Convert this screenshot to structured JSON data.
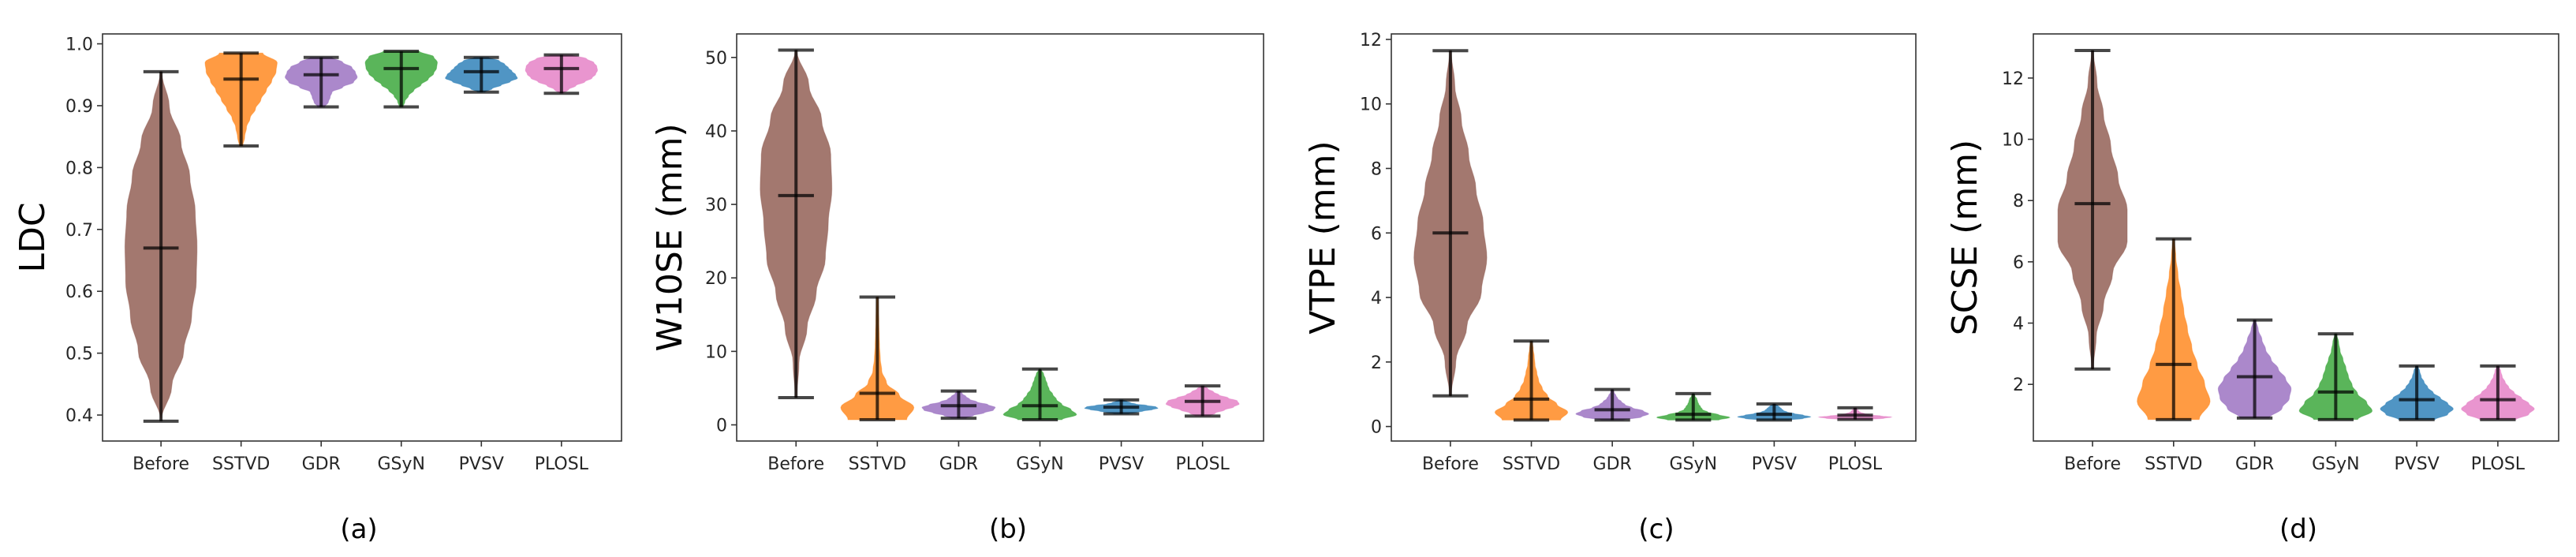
{
  "chart_data": [
    {
      "type": "violin",
      "caption": "(a)",
      "ylabel": "LDC",
      "categories": [
        "Before",
        "SSTVD",
        "GDR",
        "GSyN",
        "PVSV",
        "PLOSL"
      ],
      "ylim": [
        0.358,
        1.016
      ],
      "yticks": [
        0.4,
        0.5,
        0.6,
        0.7,
        0.8,
        0.9,
        1.0
      ],
      "ytick_labels": [
        "0.4",
        "0.5",
        "0.6",
        "0.7",
        "0.8",
        "0.9",
        "1.0"
      ],
      "grid": false,
      "series": [
        {
          "name": "Before",
          "min": 0.39,
          "max": 0.955,
          "median": 0.67,
          "density": [
            0,
            0.3,
            0.63,
            0.85,
            0.98,
            1.0,
            0.95,
            0.8,
            0.55,
            0.23,
            0.02
          ]
        },
        {
          "name": "SSTVD",
          "min": 0.835,
          "max": 0.985,
          "median": 0.943,
          "density": [
            0.05,
            0.1,
            0.15,
            0.25,
            0.4,
            0.55,
            0.7,
            0.85,
            0.97,
            1.0,
            0.6
          ]
        },
        {
          "name": "GDR",
          "min": 0.898,
          "max": 0.978,
          "median": 0.95,
          "density": [
            0.1,
            0.2,
            0.25,
            0.3,
            0.6,
            0.9,
            1.0,
            0.95,
            0.85,
            0.6,
            0.3
          ]
        },
        {
          "name": "GSyN",
          "min": 0.898,
          "max": 0.988,
          "median": 0.96,
          "density": [
            0.05,
            0.1,
            0.2,
            0.35,
            0.55,
            0.75,
            0.9,
            0.98,
            1.0,
            0.9,
            0.5
          ]
        },
        {
          "name": "PVSV",
          "min": 0.922,
          "max": 0.978,
          "median": 0.955,
          "density": [
            0.1,
            0.3,
            0.55,
            0.8,
            1.0,
            0.95,
            0.85,
            0.75,
            0.65,
            0.5,
            0.2
          ]
        },
        {
          "name": "PLOSL",
          "min": 0.92,
          "max": 0.982,
          "median": 0.96,
          "density": [
            0.05,
            0.2,
            0.4,
            0.65,
            0.85,
            0.95,
            1.0,
            0.98,
            0.9,
            0.7,
            0.3
          ]
        }
      ]
    },
    {
      "type": "violin",
      "caption": "(b)",
      "ylabel": "W10SE (mm)",
      "categories": [
        "Before",
        "SSTVD",
        "GDR",
        "GSyN",
        "PVSV",
        "PLOSL"
      ],
      "ylim": [
        -2.2,
        53.2
      ],
      "yticks": [
        0,
        10,
        20,
        30,
        40,
        50
      ],
      "ytick_labels": [
        "0",
        "10",
        "20",
        "30",
        "40",
        "50"
      ],
      "grid": false,
      "series": [
        {
          "name": "Before",
          "min": 3.7,
          "max": 51,
          "median": 31.2,
          "density": [
            0.02,
            0.08,
            0.3,
            0.55,
            0.8,
            0.88,
            0.98,
            0.95,
            0.7,
            0.35,
            0.02
          ]
        },
        {
          "name": "SSTVD",
          "min": 0.7,
          "max": 17.4,
          "median": 4.3,
          "density": [
            0.8,
            1.0,
            0.6,
            0.25,
            0.12,
            0.08,
            0.06,
            0.05,
            0.04,
            0.03,
            0.02
          ]
        },
        {
          "name": "GDR",
          "min": 0.9,
          "max": 4.6,
          "median": 2.6,
          "density": [
            0.2,
            0.4,
            0.7,
            0.95,
            1.0,
            0.8,
            0.5,
            0.3,
            0.2,
            0.1,
            0.05
          ]
        },
        {
          "name": "GSyN",
          "min": 0.7,
          "max": 7.6,
          "median": 2.6,
          "density": [
            0.6,
            1.0,
            0.85,
            0.6,
            0.45,
            0.35,
            0.25,
            0.2,
            0.15,
            0.1,
            0.02
          ]
        },
        {
          "name": "PVSV",
          "min": 1.5,
          "max": 3.4,
          "median": 2.4,
          "density": [
            0.2,
            0.4,
            0.6,
            0.85,
            1.0,
            0.95,
            0.7,
            0.4,
            0.25,
            0.15,
            0.05
          ]
        },
        {
          "name": "PLOSL",
          "min": 1.2,
          "max": 5.3,
          "median": 3.2,
          "density": [
            0.2,
            0.35,
            0.6,
            0.85,
            1.0,
            0.95,
            0.7,
            0.45,
            0.3,
            0.15,
            0.05
          ]
        }
      ]
    },
    {
      "type": "violin",
      "caption": "(c)",
      "ylabel": "VTPE (mm)",
      "categories": [
        "Before",
        "SSTVD",
        "GDR",
        "GSyN",
        "PVSV",
        "PLOSL"
      ],
      "ylim": [
        -0.45,
        12.17
      ],
      "yticks": [
        0,
        2,
        4,
        6,
        8,
        10,
        12
      ],
      "ytick_labels": [
        "0",
        "2",
        "4",
        "6",
        "8",
        "10",
        "12"
      ],
      "grid": false,
      "series": [
        {
          "name": "Before",
          "min": 0.95,
          "max": 11.65,
          "median": 6.0,
          "density": [
            0.02,
            0.15,
            0.45,
            0.85,
            1.0,
            0.9,
            0.7,
            0.5,
            0.3,
            0.12,
            0.02
          ]
        },
        {
          "name": "SSTVD",
          "min": 0.2,
          "max": 2.65,
          "median": 0.85,
          "density": [
            0.8,
            1.0,
            0.7,
            0.45,
            0.3,
            0.2,
            0.15,
            0.1,
            0.08,
            0.05,
            0.02
          ]
        },
        {
          "name": "GDR",
          "min": 0.2,
          "max": 1.15,
          "median": 0.52,
          "density": [
            0.3,
            0.8,
            1.0,
            0.85,
            0.55,
            0.35,
            0.25,
            0.15,
            0.1,
            0.05,
            0.02
          ]
        },
        {
          "name": "GSyN",
          "min": 0.2,
          "max": 1.02,
          "median": 0.38,
          "density": [
            0.7,
            1.0,
            0.7,
            0.4,
            0.25,
            0.2,
            0.15,
            0.12,
            0.1,
            0.05,
            0.02
          ]
        },
        {
          "name": "PVSV",
          "min": 0.2,
          "max": 0.7,
          "median": 0.38,
          "density": [
            0.4,
            0.8,
            1.0,
            0.8,
            0.55,
            0.35,
            0.25,
            0.2,
            0.15,
            0.1,
            0.02
          ]
        },
        {
          "name": "PLOSL",
          "min": 0.22,
          "max": 0.58,
          "median": 0.35,
          "density": [
            0.4,
            0.8,
            1.0,
            0.7,
            0.4,
            0.25,
            0.15,
            0.1,
            0.08,
            0.05,
            0.02
          ]
        }
      ]
    },
    {
      "type": "violin",
      "caption": "(d)",
      "ylabel": "SCSE (mm)",
      "categories": [
        "Before",
        "SSTVD",
        "GDR",
        "GSyN",
        "PVSV",
        "PLOSL"
      ],
      "ylim": [
        0.15,
        13.44
      ],
      "yticks": [
        2,
        4,
        6,
        8,
        10,
        12
      ],
      "ytick_labels": [
        "2",
        "4",
        "6",
        "8",
        "10",
        "12"
      ],
      "grid": false,
      "series": [
        {
          "name": "Before",
          "min": 2.5,
          "max": 12.9,
          "median": 7.9,
          "density": [
            0.02,
            0.1,
            0.3,
            0.55,
            0.95,
            0.95,
            0.7,
            0.5,
            0.3,
            0.12,
            0.02
          ]
        },
        {
          "name": "SSTVD",
          "min": 0.85,
          "max": 6.75,
          "median": 2.65,
          "density": [
            0.7,
            1.0,
            0.85,
            0.65,
            0.5,
            0.38,
            0.28,
            0.2,
            0.12,
            0.06,
            0.02
          ]
        },
        {
          "name": "GDR",
          "min": 0.9,
          "max": 4.1,
          "median": 2.25,
          "density": [
            0.4,
            0.75,
            0.95,
            1.0,
            0.85,
            0.65,
            0.45,
            0.3,
            0.2,
            0.1,
            0.03
          ]
        },
        {
          "name": "GSyN",
          "min": 0.85,
          "max": 3.65,
          "median": 1.75,
          "density": [
            0.6,
            1.0,
            0.85,
            0.6,
            0.45,
            0.35,
            0.28,
            0.2,
            0.12,
            0.08,
            0.02
          ]
        },
        {
          "name": "PVSV",
          "min": 0.85,
          "max": 2.6,
          "median": 1.5,
          "density": [
            0.5,
            0.85,
            1.0,
            0.85,
            0.65,
            0.45,
            0.3,
            0.2,
            0.12,
            0.08,
            0.03
          ]
        },
        {
          "name": "PLOSL",
          "min": 0.85,
          "max": 2.6,
          "median": 1.5,
          "density": [
            0.5,
            0.85,
            1.0,
            0.85,
            0.65,
            0.45,
            0.3,
            0.2,
            0.12,
            0.08,
            0.03
          ]
        }
      ]
    }
  ],
  "colors": {
    "Before": "#8c564b",
    "SSTVD": "#ff7f0e",
    "GDR": "#9467bd",
    "GSyN": "#2ca02c",
    "PVSV": "#1f77b4",
    "PLOSL": "#e377c2",
    "lines": "#000000"
  }
}
